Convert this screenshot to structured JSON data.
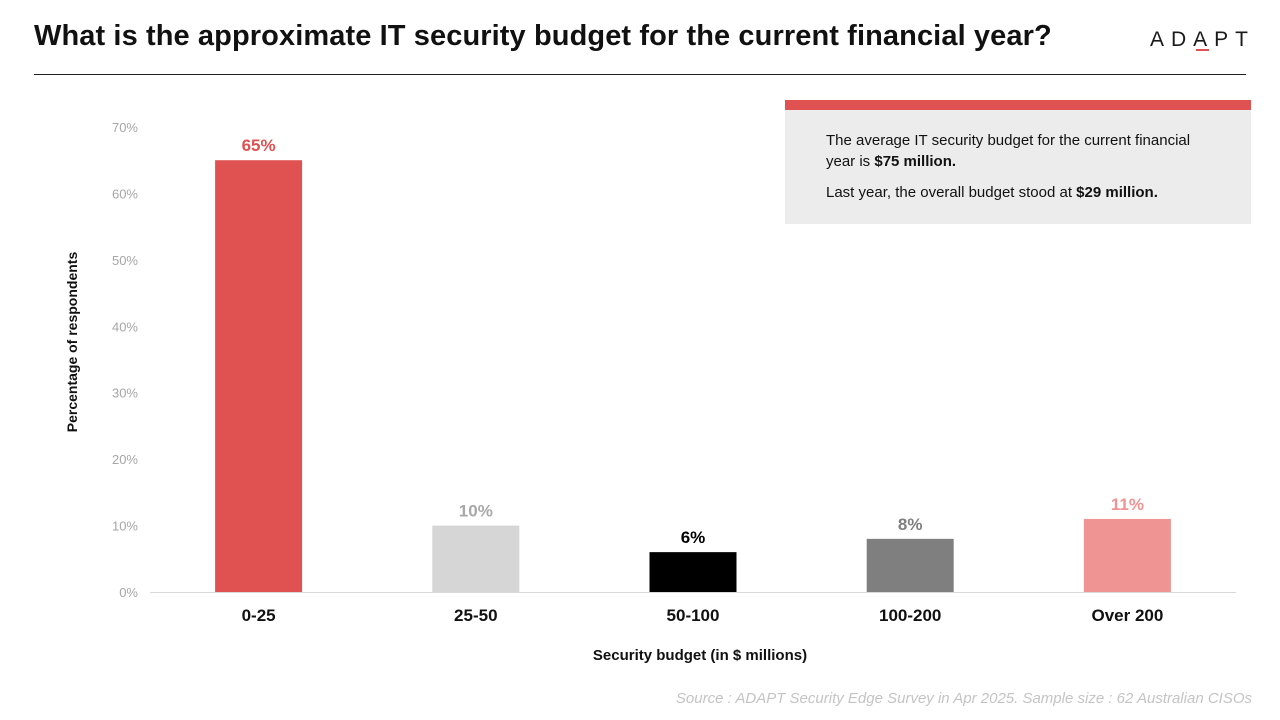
{
  "header": {
    "title": "What is the approximate IT security budget for the current financial year?",
    "logo": "ADAPT"
  },
  "callout": {
    "line1_prefix": "The average IT security budget for the current financial year is ",
    "line1_value": "$75 million.",
    "line2_prefix": "Last year, the overall budget stood at ",
    "line2_value": "$29 million."
  },
  "footer": {
    "source": "Source : ADAPT Security Edge Survey in Apr 2025. Sample size : 62 Australian CISOs"
  },
  "colors": {
    "accent": "#e05252",
    "callout_bg": "#ececec"
  },
  "chart_data": {
    "type": "bar",
    "xlabel": "Security budget (in $ millions)",
    "ylabel": "Percentage of respondents",
    "ylim": [
      0,
      70
    ],
    "yticks": [
      "0%",
      "10%",
      "20%",
      "30%",
      "40%",
      "50%",
      "60%",
      "70%"
    ],
    "categories": [
      "0-25",
      "25-50",
      "50-100",
      "100-200",
      "Over 200"
    ],
    "values": [
      65,
      10,
      6,
      8,
      11
    ],
    "value_labels": [
      "65%",
      "10%",
      "6%",
      "8%",
      "11%"
    ],
    "bar_colors": [
      "#e05252",
      "#d6d6d6",
      "#000000",
      "#7f7f7f",
      "#f09393"
    ],
    "label_colors": [
      "#e05252",
      "#a8a8a8",
      "#000000",
      "#7f7f7f",
      "#f09393"
    ],
    "grid": false,
    "legend": "none"
  }
}
